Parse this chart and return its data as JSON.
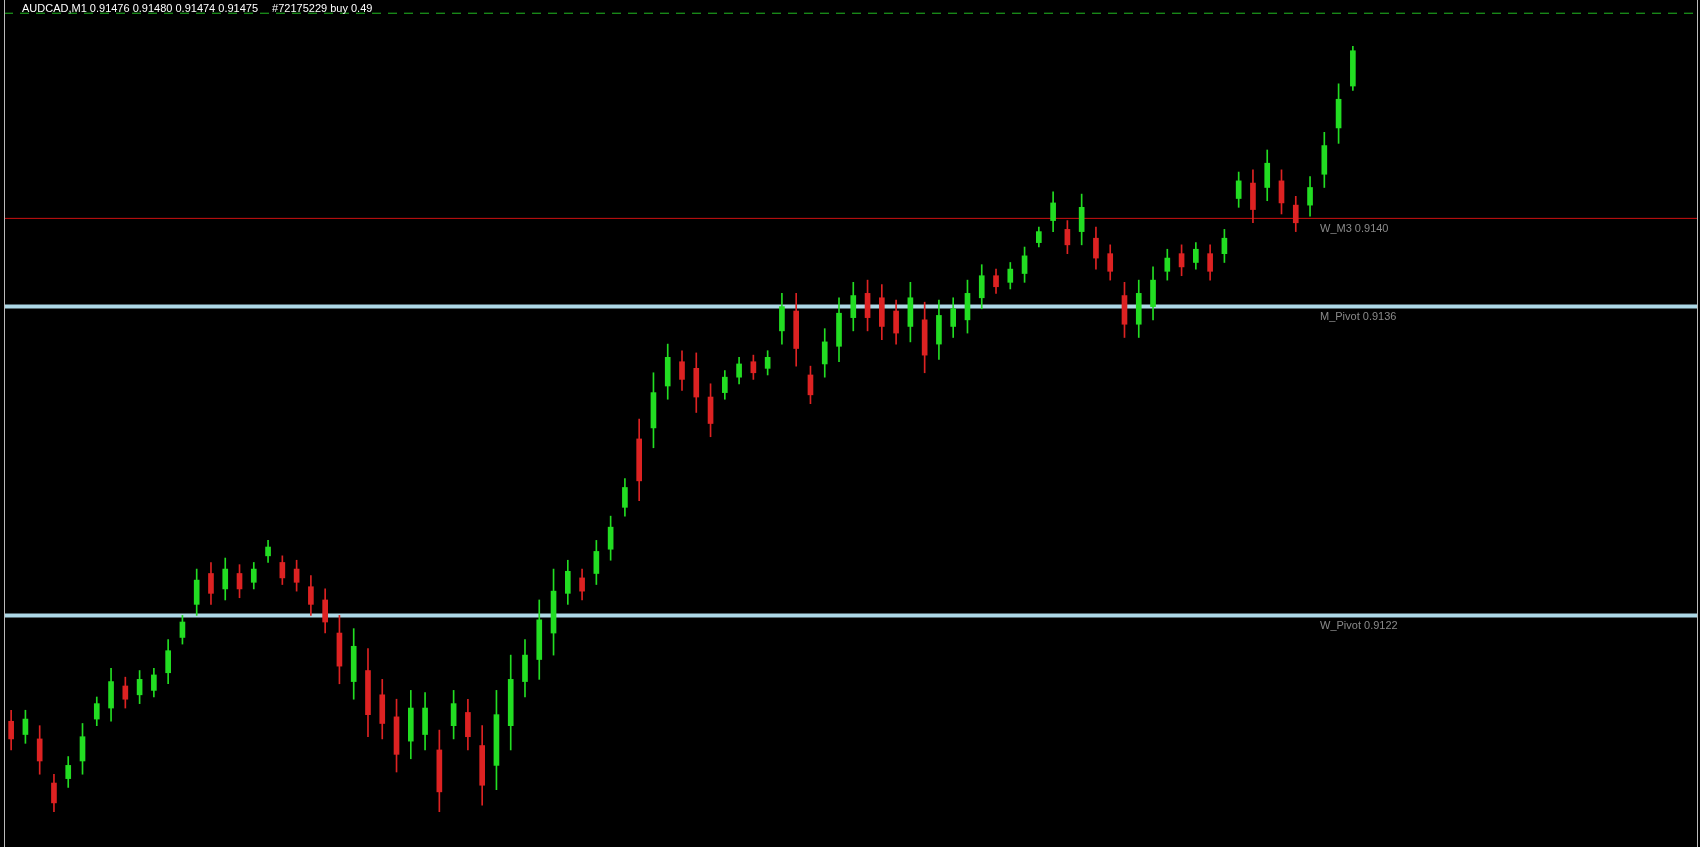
{
  "chart_data": {
    "type": "candlestick",
    "title": "AUDCAD,M1 0.91476 0.91480 0.91474 0.91475",
    "annotations": [
      "#72175229 buy 0.49"
    ],
    "categories": [
      null,
      null,
      null,
      null,
      null,
      null,
      null,
      null,
      null,
      null,
      null,
      null,
      null,
      null,
      null,
      null,
      null,
      null,
      null,
      null,
      null,
      null,
      null,
      null,
      null,
      null,
      null,
      null,
      null,
      null,
      null,
      null,
      null,
      null,
      null,
      null,
      null,
      null,
      null,
      null,
      null,
      null,
      null,
      null,
      null,
      null,
      null,
      null,
      null,
      null,
      null,
      null,
      null,
      null,
      null,
      null,
      null,
      null,
      null,
      null,
      null,
      null,
      null,
      null,
      null,
      null,
      null,
      null,
      null,
      null,
      null,
      null,
      null,
      null,
      null,
      null,
      null,
      null,
      null,
      null,
      null,
      null,
      null,
      null,
      null,
      null,
      null,
      null,
      null,
      null,
      null,
      null,
      null,
      null,
      null
    ],
    "ohlc": [
      [
        0.91172,
        0.91177,
        0.91159,
        0.91164
      ],
      [
        0.91166,
        0.91177,
        0.91162,
        0.91173
      ],
      [
        0.91164,
        0.9117,
        0.91148,
        0.91154
      ],
      [
        0.91144,
        0.91148,
        0.91131,
        0.91135
      ],
      [
        0.91146,
        0.91156,
        0.91142,
        0.91152
      ],
      [
        0.91154,
        0.91171,
        0.91148,
        0.91165
      ],
      [
        0.91173,
        0.91183,
        0.9117,
        0.9118
      ],
      [
        0.91178,
        0.91196,
        0.91172,
        0.9119
      ],
      [
        0.91188,
        0.91192,
        0.91178,
        0.91182
      ],
      [
        0.91184,
        0.91195,
        0.9118,
        0.91191
      ],
      [
        0.91186,
        0.91196,
        0.91183,
        0.91193
      ],
      [
        0.91194,
        0.91209,
        0.91189,
        0.91204
      ],
      [
        0.9121,
        0.9122,
        0.91207,
        0.91217
      ],
      [
        0.91225,
        0.91241,
        0.9122,
        0.91236
      ],
      [
        0.91239,
        0.91244,
        0.91225,
        0.9123
      ],
      [
        0.91232,
        0.91246,
        0.91227,
        0.91241
      ],
      [
        0.91239,
        0.91243,
        0.91228,
        0.91232
      ],
      [
        0.91235,
        0.91244,
        0.91232,
        0.91241
      ],
      [
        0.91247,
        0.91254,
        0.91244,
        0.91251
      ],
      [
        0.91244,
        0.91247,
        0.91234,
        0.91237
      ],
      [
        0.91241,
        0.91245,
        0.91231,
        0.91235
      ],
      [
        0.91233,
        0.91238,
        0.9122,
        0.91225
      ],
      [
        0.91227,
        0.91232,
        0.91212,
        0.91217
      ],
      [
        0.91212,
        0.9122,
        0.91189,
        0.91197
      ],
      [
        0.9119,
        0.91214,
        0.91182,
        0.91206
      ],
      [
        0.91195,
        0.91205,
        0.91165,
        0.91175
      ],
      [
        0.91184,
        0.91191,
        0.91164,
        0.91171
      ],
      [
        0.91174,
        0.91182,
        0.91149,
        0.91157
      ],
      [
        0.91163,
        0.91186,
        0.91155,
        0.91178
      ],
      [
        0.91166,
        0.91185,
        0.91159,
        0.91178
      ],
      [
        0.91159,
        0.91168,
        0.91131,
        0.9114
      ],
      [
        0.9117,
        0.91186,
        0.91164,
        0.9118
      ],
      [
        0.91176,
        0.91182,
        0.91159,
        0.91165
      ],
      [
        0.91161,
        0.9117,
        0.91134,
        0.91143
      ],
      [
        0.91152,
        0.91186,
        0.91141,
        0.91175
      ],
      [
        0.9117,
        0.91202,
        0.91159,
        0.91191
      ],
      [
        0.9119,
        0.91209,
        0.91183,
        0.91202
      ],
      [
        0.912,
        0.91227,
        0.91191,
        0.91218
      ],
      [
        0.91212,
        0.91241,
        0.91202,
        0.91231
      ],
      [
        0.9123,
        0.91245,
        0.91225,
        0.9124
      ],
      [
        0.91237,
        0.91241,
        0.91227,
        0.91231
      ],
      [
        0.91239,
        0.91254,
        0.91234,
        0.91249
      ],
      [
        0.9125,
        0.91265,
        0.91245,
        0.9126
      ],
      [
        0.91269,
        0.91282,
        0.91265,
        0.91278
      ],
      [
        0.913,
        0.91309,
        0.91272,
        0.91281
      ],
      [
        0.91305,
        0.9133,
        0.91296,
        0.91321
      ],
      [
        0.91324,
        0.91343,
        0.91318,
        0.91337
      ],
      [
        0.91335,
        0.9134,
        0.91322,
        0.91327
      ],
      [
        0.91332,
        0.91339,
        0.91312,
        0.91319
      ],
      [
        0.91319,
        0.91325,
        0.91301,
        0.91307
      ],
      [
        0.91321,
        0.91331,
        0.91318,
        0.91328
      ],
      [
        0.91328,
        0.91337,
        0.91325,
        0.91334
      ],
      [
        0.91335,
        0.91338,
        0.91327,
        0.9133
      ],
      [
        0.91332,
        0.9134,
        0.91329,
        0.91337
      ],
      [
        0.91349,
        0.91366,
        0.91343,
        0.9136
      ],
      [
        0.91358,
        0.91366,
        0.91333,
        0.91341
      ],
      [
        0.91329,
        0.91333,
        0.91316,
        0.9132
      ],
      [
        0.91334,
        0.9135,
        0.91328,
        0.91344
      ],
      [
        0.91342,
        0.91364,
        0.91335,
        0.91357
      ],
      [
        0.91355,
        0.91371,
        0.91349,
        0.91365
      ],
      [
        0.91366,
        0.91372,
        0.91349,
        0.91355
      ],
      [
        0.91364,
        0.9137,
        0.91345,
        0.91351
      ],
      [
        0.91358,
        0.91363,
        0.91343,
        0.91348
      ],
      [
        0.91351,
        0.91371,
        0.91344,
        0.91364
      ],
      [
        0.91354,
        0.91362,
        0.9133,
        0.91338
      ],
      [
        0.91343,
        0.91363,
        0.91336,
        0.91356
      ],
      [
        0.91351,
        0.91364,
        0.91346,
        0.91359
      ],
      [
        0.91354,
        0.91372,
        0.91348,
        0.91366
      ],
      [
        0.91364,
        0.91379,
        0.91359,
        0.91374
      ],
      [
        0.91374,
        0.91377,
        0.91366,
        0.91369
      ],
      [
        0.91371,
        0.9138,
        0.91368,
        0.91377
      ],
      [
        0.91375,
        0.91387,
        0.91371,
        0.91383
      ],
      [
        0.91389,
        0.91396,
        0.91387,
        0.91394
      ],
      [
        0.91399,
        0.91412,
        0.91394,
        0.91407
      ],
      [
        0.91395,
        0.91399,
        0.91384,
        0.91388
      ],
      [
        0.91394,
        0.91411,
        0.91388,
        0.91405
      ],
      [
        0.91391,
        0.91396,
        0.91377,
        0.91382
      ],
      [
        0.91384,
        0.91388,
        0.91372,
        0.91376
      ],
      [
        0.91365,
        0.91371,
        0.91346,
        0.91352
      ],
      [
        0.91352,
        0.91372,
        0.91346,
        0.91366
      ],
      [
        0.9136,
        0.91378,
        0.91354,
        0.91372
      ],
      [
        0.91376,
        0.91386,
        0.91372,
        0.91382
      ],
      [
        0.91384,
        0.91388,
        0.91374,
        0.91378
      ],
      [
        0.9138,
        0.91389,
        0.91377,
        0.91386
      ],
      [
        0.91384,
        0.91388,
        0.91372,
        0.91376
      ],
      [
        0.91384,
        0.91395,
        0.9138,
        0.91391
      ],
      [
        0.91409,
        0.91421,
        0.91405,
        0.91417
      ],
      [
        0.91416,
        0.91422,
        0.91398,
        0.91404
      ],
      [
        0.91414,
        0.91431,
        0.91408,
        0.91425
      ],
      [
        0.91417,
        0.91422,
        0.91402,
        0.91407
      ],
      [
        0.91406,
        0.9141,
        0.91394,
        0.91398
      ],
      [
        0.91406,
        0.91419,
        0.91401,
        0.91414
      ],
      [
        0.9142,
        0.91439,
        0.91414,
        0.91433
      ],
      [
        0.91441,
        0.91461,
        0.91434,
        0.91454
      ],
      [
        0.9146,
        0.91478,
        0.91458,
        0.91476
      ]
    ],
    "colors": [
      "#dd2222",
      "#22dd22",
      "#dd2222",
      "#dd2222",
      "#22dd22",
      "#22dd22",
      "#22dd22",
      "#22dd22",
      "#dd2222",
      "#22dd22",
      "#22dd22",
      "#22dd22",
      "#22dd22",
      "#22dd22",
      "#dd2222",
      "#22dd22",
      "#dd2222",
      "#22dd22",
      "#22dd22",
      "#dd2222",
      "#dd2222",
      "#dd2222",
      "#dd2222",
      "#dd2222",
      "#22dd22",
      "#dd2222",
      "#dd2222",
      "#dd2222",
      "#22dd22",
      "#22dd22",
      "#dd2222",
      "#22dd22",
      "#dd2222",
      "#dd2222",
      "#22dd22",
      "#22dd22",
      "#22dd22",
      "#22dd22",
      "#22dd22",
      "#22dd22",
      "#dd2222",
      "#22dd22",
      "#22dd22",
      "#22dd22",
      "#dd2222",
      "#22dd22",
      "#22dd22",
      "#dd2222",
      "#dd2222",
      "#dd2222",
      "#22dd22",
      "#22dd22",
      "#dd2222",
      "#22dd22",
      "#22dd22",
      "#dd2222",
      "#dd2222",
      "#22dd22",
      "#22dd22",
      "#22dd22",
      "#dd2222",
      "#dd2222",
      "#dd2222",
      "#22dd22",
      "#dd2222",
      "#22dd22",
      "#22dd22",
      "#22dd22",
      "#22dd22",
      "#dd2222",
      "#22dd22",
      "#22dd22",
      "#22dd22",
      "#22dd22",
      "#dd2222",
      "#22dd22",
      "#dd2222",
      "#dd2222",
      "#dd2222",
      "#22dd22",
      "#22dd22",
      "#22dd22",
      "#dd2222",
      "#22dd22",
      "#dd2222",
      "#22dd22",
      "#22dd22",
      "#dd2222",
      "#22dd22",
      "#dd2222",
      "#dd2222",
      "#22dd22",
      "#22dd22",
      "#22dd22",
      "#22dd22"
    ],
    "ylim": [
      0.91115,
      0.91499
    ],
    "tick_labels": false,
    "ref_lines": [
      {
        "axis": "y",
        "value": 0.91493,
        "color": "#22bb22",
        "line_style": "dashed"
      },
      {
        "axis": "y",
        "value": 0.914,
        "label": "W_M3 0.9140",
        "color": "#cc1111"
      },
      {
        "axis": "y",
        "value": 0.9136,
        "label": "M_Pivot 0.9136",
        "color": "#add8e6"
      },
      {
        "axis": "y",
        "value": 0.9122,
        "label": "W_Pivot 0.9122",
        "color": "#add8e6"
      }
    ]
  }
}
